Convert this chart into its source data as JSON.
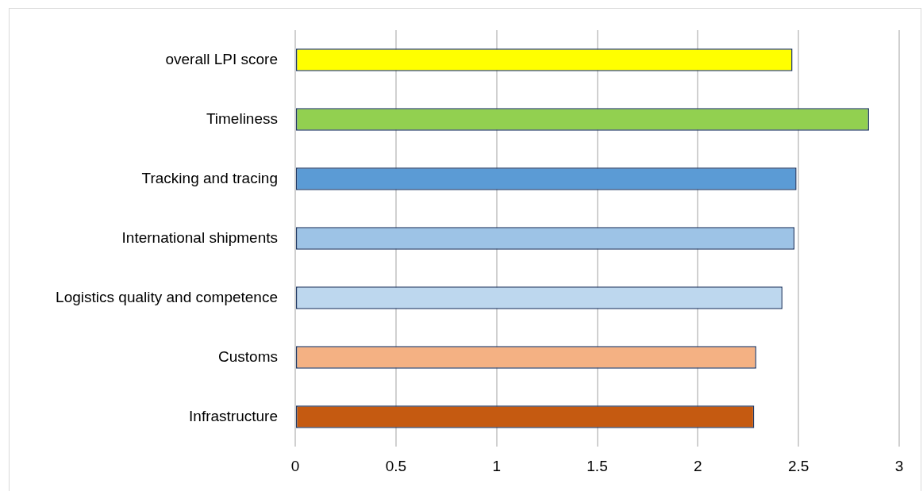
{
  "chart_data": {
    "type": "bar",
    "orientation": "horizontal",
    "categories": [
      "overall LPI score",
      "Timeliness",
      "Tracking and tracing",
      "International shipments",
      "Logistics quality and competence",
      "Customs",
      "Infrastructure"
    ],
    "values": [
      2.47,
      2.85,
      2.49,
      2.48,
      2.42,
      2.29,
      2.28
    ],
    "colors": [
      "#ffff00",
      "#92d050",
      "#5b9bd5",
      "#9dc3e6",
      "#bdd7ee",
      "#f4b183",
      "#c55a11"
    ],
    "xlim": [
      0,
      3
    ],
    "xticks": [
      0,
      0.5,
      1,
      1.5,
      2,
      2.5,
      3
    ],
    "grid": "x",
    "legend": false
  }
}
